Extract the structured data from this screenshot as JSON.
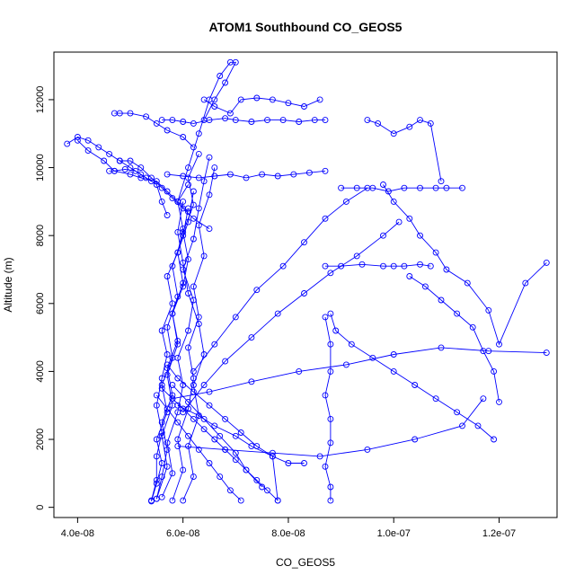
{
  "chart_data": {
    "type": "line",
    "title": "ATOM1 Southbound CO_GEOS5",
    "xlabel": "CO_GEOS5",
    "ylabel": "Altitude (m)",
    "xlim": [
      3.55e-08,
      1.31e-07
    ],
    "ylim": [
      -300,
      13400
    ],
    "x_ticks": [
      4e-08,
      6e-08,
      8e-08,
      1e-07,
      1.2e-07
    ],
    "x_tick_labels": [
      "4.0e-08",
      "6.0e-08",
      "8.0e-08",
      "1.0e-07",
      "1.2e-07"
    ],
    "y_ticks": [
      0,
      2000,
      4000,
      6000,
      8000,
      10000,
      12000
    ],
    "y_tick_labels": [
      "0",
      "2000",
      "4000",
      "6000",
      "8000",
      "10000",
      "12000"
    ],
    "grid": false,
    "marker": "open-circle",
    "series_color": "#0000ff",
    "profiles": [
      {
        "x": [
          5.4e-08,
          5.5e-08,
          5.5e-08,
          5.6e-08,
          5.5e-08,
          5.6e-08,
          5.7e-08,
          5.6e-08,
          5.8e-08,
          5.7e-08,
          5.9e-08,
          6e-08,
          5.9e-08,
          6.1e-08
        ],
        "y": [
          200,
          800,
          1500,
          2200,
          3000,
          3800,
          4500,
          5200,
          6000,
          6800,
          7500,
          8200,
          9000,
          9500
        ]
      },
      {
        "x": [
          5.5e-08,
          5.6e-08,
          5.7e-08,
          5.6e-08,
          5.8e-08,
          5.7e-08,
          5.9e-08,
          5.8e-08,
          6e-08,
          6.1e-08,
          6e-08,
          6.2e-08,
          6.1e-08,
          6.3e-08
        ],
        "y": [
          250,
          900,
          1700,
          2500,
          3300,
          4100,
          4900,
          5700,
          6500,
          7300,
          8100,
          8900,
          9700,
          10400
        ]
      },
      {
        "x": [
          5.6e-08,
          5.8e-08,
          5.7e-08,
          5.9e-08,
          6e-08,
          5.9e-08,
          6.1e-08,
          6.2e-08,
          6e-08,
          6.2e-08,
          6.3e-08,
          6.4e-08,
          6.5e-08
        ],
        "y": [
          300,
          1000,
          1900,
          2800,
          3600,
          4400,
          5200,
          6100,
          7000,
          7900,
          8800,
          9600,
          10300
        ]
      },
      {
        "x": [
          5.4e-08,
          5.5e-08,
          5.6e-08,
          5.5e-08,
          5.7e-08,
          5.6e-08,
          5.8e-08,
          5.7e-08,
          5.9e-08,
          5.8e-08,
          6e-08,
          6.1e-08
        ],
        "y": [
          180,
          700,
          1300,
          2000,
          2800,
          3600,
          4400,
          5300,
          6200,
          7100,
          8000,
          8800
        ]
      },
      {
        "x": [
          5.8e-08,
          6e-08,
          5.9e-08,
          6.1e-08,
          6.2e-08,
          6.1e-08,
          6.3e-08,
          6.2e-08,
          6.4e-08,
          6.3e-08,
          6.5e-08,
          6.6e-08
        ],
        "y": [
          200,
          1100,
          2000,
          2900,
          3800,
          4700,
          5600,
          6500,
          7400,
          8300,
          9200,
          10000
        ]
      },
      {
        "x": [
          5.5e-08,
          5.7e-08,
          5.6e-08,
          5.8e-08,
          5.7e-08,
          5.9e-08,
          5.8e-08,
          6e-08,
          5.9e-08,
          6.1e-08,
          6.2e-08
        ],
        "y": [
          250,
          1200,
          2100,
          3000,
          3900,
          4800,
          5700,
          6600,
          7500,
          8400,
          9300
        ]
      },
      {
        "x": [
          6e-08,
          6.2e-08,
          6.1e-08,
          6.3e-08,
          6.2e-08,
          6.4e-08,
          6.3e-08,
          6.1e-08,
          6e-08,
          5.9e-08,
          6e-08
        ],
        "y": [
          200,
          900,
          1800,
          2700,
          3600,
          4500,
          5400,
          6300,
          7200,
          8100,
          9000
        ]
      },
      {
        "x": [
          5.6e-08,
          5.8e-08,
          6e-08,
          6.2e-08,
          6.4e-08,
          6.6e-08,
          6.8e-08,
          7e-08,
          7.2e-08,
          7.4e-08,
          7.6e-08,
          7.8e-08
        ],
        "y": [
          3500,
          3200,
          2900,
          2600,
          2300,
          2000,
          1700,
          1400,
          1100,
          800,
          500,
          200
        ]
      },
      {
        "x": [
          5.7e-08,
          5.9e-08,
          6.2e-08,
          6.5e-08,
          6.8e-08,
          7.1e-08,
          7.4e-08,
          7.7e-08,
          8e-08,
          8.3e-08
        ],
        "y": [
          4200,
          3800,
          3400,
          3000,
          2600,
          2200,
          1800,
          1500,
          1300,
          1300
        ]
      },
      {
        "x": [
          5.8e-08,
          6.1e-08,
          6.4e-08,
          6.7e-08,
          7e-08,
          7.2e-08,
          7.5e-08
        ],
        "y": [
          3600,
          3100,
          2600,
          2100,
          1600,
          1100,
          600
        ]
      },
      {
        "x": [
          5.9e-08,
          6.3e-08,
          6.6e-08,
          7e-08,
          7.3e-08,
          7.7e-08,
          7.8e-08
        ],
        "y": [
          3000,
          2700,
          2400,
          2100,
          1800,
          1500,
          200
        ]
      },
      {
        "x": [
          5.5e-08,
          5.7e-08,
          5.9e-08,
          6.1e-08,
          6.3e-08,
          6.5e-08,
          6.7e-08,
          6.9e-08,
          7.1e-08
        ],
        "y": [
          3300,
          2900,
          2500,
          2100,
          1700,
          1300,
          900,
          500,
          200
        ]
      },
      {
        "x": [
          3.8e-08,
          4e-08,
          4.2e-08,
          4.4e-08,
          4.6e-08,
          4.8e-08,
          5e-08,
          5.2e-08,
          5.4e-08
        ],
        "y": [
          10700,
          10900,
          10800,
          10600,
          10400,
          10200,
          10000,
          9800,
          9600
        ]
      },
      {
        "x": [
          4e-08,
          4.2e-08,
          4.5e-08,
          4.7e-08,
          5e-08,
          5.2e-08,
          5.5e-08,
          5.7e-08,
          5.9e-08,
          6.1e-08
        ],
        "y": [
          10800,
          10500,
          10200,
          9900,
          9800,
          9700,
          9600,
          9300,
          9000,
          8700
        ]
      },
      {
        "x": [
          4.6e-08,
          4.7e-08,
          4.9e-08,
          5.1e-08,
          5.3e-08,
          5.5e-08,
          5.6e-08,
          5.7e-08
        ],
        "y": [
          9900,
          9900,
          9950,
          9900,
          9700,
          9500,
          9000,
          8600
        ]
      },
      {
        "x": [
          4.7e-08,
          4.8e-08,
          5e-08,
          5.3e-08,
          5.5e-08,
          5.7e-08,
          6e-08,
          6.2e-08
        ],
        "y": [
          11600,
          11600,
          11600,
          11500,
          11300,
          11100,
          10900,
          10600
        ]
      },
      {
        "x": [
          4.8e-08,
          5e-08,
          5.2e-08,
          5.4e-08,
          5.6e-08,
          5.8e-08,
          6e-08,
          6.2e-08,
          6.5e-08
        ],
        "y": [
          10200,
          10200,
          10000,
          9700,
          9400,
          9100,
          8800,
          8500,
          8200
        ]
      },
      {
        "x": [
          5.6e-08,
          5.8e-08,
          6e-08,
          6.2e-08,
          6.5e-08,
          6.8e-08,
          7e-08,
          7.3e-08,
          7.6e-08,
          7.9e-08,
          8.2e-08,
          8.5e-08,
          8.7e-08
        ],
        "y": [
          11400,
          11400,
          11350,
          11300,
          11400,
          11450,
          11400,
          11350,
          11400,
          11400,
          11350,
          11400,
          11400
        ]
      },
      {
        "x": [
          5.7e-08,
          6e-08,
          6.3e-08,
          6.6e-08,
          6.9e-08,
          7.2e-08,
          7.5e-08,
          7.8e-08,
          8.1e-08,
          8.4e-08,
          8.7e-08
        ],
        "y": [
          9800,
          9750,
          9700,
          9750,
          9800,
          9700,
          9800,
          9750,
          9800,
          9850,
          9900
        ]
      },
      {
        "x": [
          5.9e-08,
          6.1e-08,
          6.3e-08,
          6.5e-08,
          6.7e-08,
          6.9e-08,
          7e-08,
          6.8e-08,
          6.6e-08,
          6.4e-08
        ],
        "y": [
          9000,
          10000,
          11000,
          12000,
          12700,
          13100,
          13100,
          12500,
          12000,
          11400
        ]
      },
      {
        "x": [
          6.4e-08,
          6.6e-08,
          6.9e-08,
          7.1e-08,
          7.4e-08,
          7.7e-08,
          8e-08,
          8.3e-08,
          8.6e-08
        ],
        "y": [
          12000,
          11800,
          11600,
          12000,
          12050,
          12000,
          11900,
          11800,
          12000
        ]
      },
      {
        "x": [
          9e-08,
          9.3e-08,
          9.6e-08,
          9.9e-08,
          1.02e-07,
          1.05e-07,
          1.08e-07,
          1.1e-07,
          1.13e-07
        ],
        "y": [
          9400,
          9400,
          9400,
          9300,
          9400,
          9400,
          9400,
          9400,
          9400
        ]
      },
      {
        "x": [
          9.5e-08,
          9.7e-08,
          1e-07,
          1.03e-07,
          1.05e-07,
          1.07e-07,
          1.09e-07
        ],
        "y": [
          11400,
          11300,
          11000,
          11200,
          11400,
          11300,
          9600
        ]
      },
      {
        "x": [
          8.7e-08,
          9e-08,
          9.4e-08,
          9.8e-08,
          1e-07,
          1.02e-07,
          1.05e-07,
          1.07e-07
        ],
        "y": [
          7100,
          7100,
          7150,
          7100,
          7100,
          7100,
          7150,
          7100
        ]
      },
      {
        "x": [
          9.8e-08,
          1e-07,
          1.03e-07,
          1.05e-07,
          1.08e-07,
          1.1e-07,
          1.14e-07,
          1.18e-07,
          1.2e-07,
          1.25e-07,
          1.29e-07
        ],
        "y": [
          9500,
          9000,
          8500,
          8000,
          7500,
          7000,
          6600,
          5800,
          4800,
          6600,
          7200
        ]
      },
      {
        "x": [
          1.03e-07,
          1.06e-07,
          1.09e-07,
          1.12e-07,
          1.15e-07,
          1.17e-07,
          1.19e-07,
          1.2e-07
        ],
        "y": [
          6800,
          6500,
          6100,
          5700,
          5300,
          4600,
          4000,
          3100
        ]
      },
      {
        "x": [
          8.8e-08,
          8.9e-08,
          9.2e-08,
          9.6e-08,
          1e-07,
          1.04e-07,
          1.08e-07,
          1.12e-07,
          1.16e-07,
          1.19e-07
        ],
        "y": [
          5700,
          5200,
          4800,
          4400,
          4000,
          3600,
          3200,
          2800,
          2400,
          2000
        ]
      },
      {
        "x": [
          8.7e-08,
          8.8e-08,
          8.8e-08,
          8.7e-08,
          8.8e-08,
          8.8e-08,
          8.7e-08,
          8.8e-08,
          8.8e-08
        ],
        "y": [
          5600,
          4800,
          4000,
          3300,
          2600,
          1900,
          1200,
          600,
          200
        ]
      },
      {
        "x": [
          5.8e-08,
          6.5e-08,
          7.3e-08,
          8.2e-08,
          9.1e-08,
          1e-07,
          1.09e-07,
          1.18e-07,
          1.29e-07
        ],
        "y": [
          3200,
          3400,
          3700,
          4000,
          4200,
          4500,
          4700,
          4600,
          4550
        ]
      },
      {
        "x": [
          5.9e-08,
          6.8e-08,
          7.7e-08,
          8.6e-08,
          9.5e-08,
          1.04e-07,
          1.13e-07,
          1.17e-07
        ],
        "y": [
          1800,
          1700,
          1600,
          1500,
          1700,
          2000,
          2400,
          3200
        ]
      },
      {
        "x": [
          6e-08,
          6.4e-08,
          6.8e-08,
          7.3e-08,
          7.8e-08,
          8.3e-08,
          8.8e-08,
          9.3e-08,
          9.8e-08,
          1.01e-07
        ],
        "y": [
          2800,
          3600,
          4300,
          5000,
          5700,
          6300,
          6900,
          7400,
          8000,
          8400
        ]
      },
      {
        "x": [
          6.2e-08,
          6.6e-08,
          7e-08,
          7.4e-08,
          7.9e-08,
          8.3e-08,
          8.7e-08,
          9.1e-08,
          9.5e-08
        ],
        "y": [
          4000,
          4800,
          5600,
          6400,
          7100,
          7800,
          8500,
          9000,
          9400
        ]
      }
    ]
  }
}
